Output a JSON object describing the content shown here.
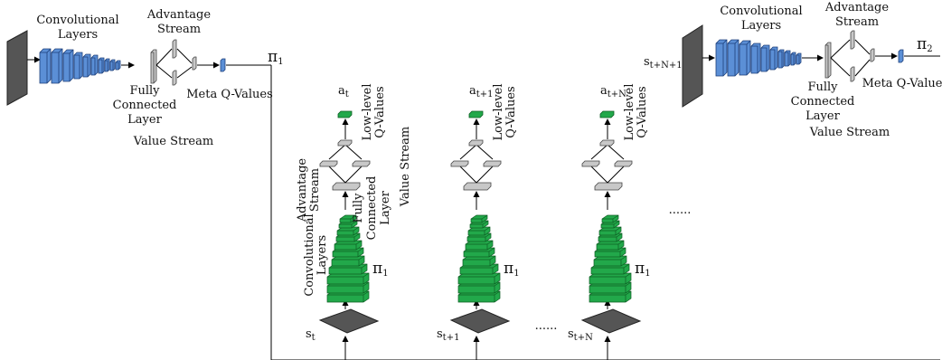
{
  "colors": {
    "conv_blue": "#5b8fd6",
    "conv_green": "#22a84a",
    "fc_gray": "#c8c8c8",
    "frame_dark": "#555555",
    "line": "#000000"
  },
  "meta_left": {
    "conv_label": [
      "Convolutional",
      "Layers"
    ],
    "adv_label": [
      "Advantage",
      "Stream"
    ],
    "fc_label": [
      "Fully",
      "Connected",
      "Layer"
    ],
    "meta_q_label": "Meta Q-Values",
    "value_label": "Value Stream",
    "policy": "π",
    "policy_sub": "1"
  },
  "meta_right": {
    "state": "s",
    "state_sub": "t+N+1",
    "conv_label": [
      "Convolutional",
      "Layers"
    ],
    "adv_label": [
      "Advantage",
      "Stream"
    ],
    "fc_label": [
      "Fully",
      "Connected",
      "Layer"
    ],
    "meta_q_label": "Meta Q-Value",
    "value_label": "Value Stream",
    "policy": "π",
    "policy_sub": "2"
  },
  "low_level": {
    "adv_label": [
      "Advantage",
      "Stream"
    ],
    "fc_label": [
      "Fully",
      "Connected",
      "Layer"
    ],
    "value_label": "Value Stream",
    "conv_label": [
      "Convolutional",
      "Layers"
    ],
    "q_label": [
      "Low-level",
      "Q-Values"
    ],
    "policy": "π",
    "policy_sub": "1",
    "columns": [
      {
        "state": "s",
        "state_sub": "t",
        "action": "a",
        "action_sub": "t"
      },
      {
        "state": "s",
        "state_sub": "t+1",
        "action": "a",
        "action_sub": "t+1"
      },
      {
        "state": "s",
        "state_sub": "t+N",
        "action": "a",
        "action_sub": "t+N"
      }
    ]
  },
  "ellipsis_top": "......",
  "ellipsis_bottom": "......"
}
